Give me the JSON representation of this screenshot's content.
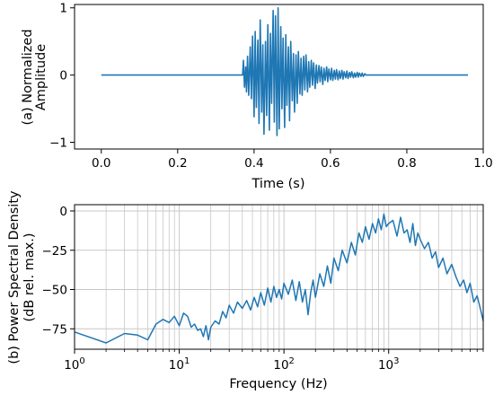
{
  "chart_data": [
    {
      "type": "line",
      "panel": "(a)",
      "xlabel": "Time (s)",
      "ylabel_lines": [
        "(a) Normalized",
        "Amplitude"
      ],
      "xlim": [
        -0.07,
        1.0
      ],
      "ylim": [
        -1.1,
        1.05
      ],
      "xticks": [
        0.0,
        0.2,
        0.4,
        0.6,
        0.8,
        1.0
      ],
      "xtick_labels": [
        "0.0",
        "0.2",
        "0.4",
        "0.6",
        "0.8",
        "1.0"
      ],
      "yticks": [
        -1,
        0,
        1
      ],
      "ytick_labels": [
        "−1",
        "0",
        "1"
      ],
      "grid": false,
      "line_color": "#1f77b4",
      "series": [
        {
          "x": [
            0.0,
            0.37,
            0.372,
            0.375,
            0.378,
            0.38,
            0.383,
            0.386,
            0.39,
            0.393,
            0.396,
            0.4,
            0.403,
            0.406,
            0.41,
            0.413,
            0.416,
            0.42,
            0.423,
            0.426,
            0.43,
            0.433,
            0.436,
            0.44,
            0.443,
            0.446,
            0.45,
            0.453,
            0.456,
            0.46,
            0.463,
            0.466,
            0.47,
            0.473,
            0.476,
            0.48,
            0.483,
            0.486,
            0.49,
            0.493,
            0.496,
            0.5,
            0.503,
            0.506,
            0.51,
            0.513,
            0.516,
            0.52,
            0.523,
            0.526,
            0.53,
            0.533,
            0.536,
            0.54,
            0.543,
            0.546,
            0.55,
            0.553,
            0.556,
            0.56,
            0.563,
            0.566,
            0.57,
            0.573,
            0.576,
            0.58,
            0.583,
            0.586,
            0.59,
            0.593,
            0.596,
            0.6,
            0.603,
            0.606,
            0.61,
            0.613,
            0.616,
            0.62,
            0.623,
            0.626,
            0.63,
            0.633,
            0.636,
            0.64,
            0.643,
            0.646,
            0.65,
            0.653,
            0.656,
            0.66,
            0.663,
            0.666,
            0.67,
            0.673,
            0.676,
            0.68,
            0.683,
            0.686,
            0.69,
            0.693,
            0.96
          ],
          "y": [
            0.0,
            0.0,
            0.22,
            -0.18,
            0.12,
            -0.25,
            0.28,
            -0.3,
            0.42,
            -0.35,
            0.58,
            -0.62,
            0.65,
            -0.48,
            0.52,
            -0.72,
            0.82,
            -0.55,
            0.45,
            -0.88,
            0.5,
            -0.6,
            0.75,
            -0.82,
            0.62,
            -0.42,
            0.96,
            -0.7,
            0.88,
            -0.9,
            1.0,
            -0.8,
            0.72,
            -0.5,
            0.55,
            -0.78,
            0.6,
            -0.45,
            0.42,
            -0.68,
            0.5,
            -0.38,
            0.32,
            -0.55,
            0.3,
            -0.42,
            0.35,
            -0.28,
            0.25,
            -0.3,
            0.28,
            -0.22,
            0.3,
            -0.25,
            0.2,
            -0.18,
            0.22,
            -0.15,
            0.18,
            -0.2,
            0.15,
            -0.12,
            0.14,
            -0.1,
            0.12,
            -0.14,
            0.1,
            -0.08,
            0.12,
            -0.1,
            0.09,
            -0.07,
            0.1,
            -0.08,
            0.07,
            -0.06,
            0.08,
            -0.07,
            0.06,
            -0.05,
            0.07,
            -0.06,
            0.05,
            -0.04,
            0.06,
            -0.05,
            0.04,
            -0.03,
            0.05,
            -0.04,
            0.03,
            -0.03,
            0.04,
            -0.03,
            0.03,
            -0.02,
            0.03,
            -0.02,
            0.02,
            0.0,
            0.0
          ]
        }
      ]
    },
    {
      "type": "line",
      "panel": "(b)",
      "xlabel": "Frequency (Hz)",
      "ylabel_lines": [
        "(b) Power Spectral Density",
        "(dB rel. max.)"
      ],
      "xscale": "log",
      "xlim": [
        1,
        8000
      ],
      "ylim": [
        -88,
        4
      ],
      "xticks": [
        1,
        10,
        100,
        1000
      ],
      "xtick_labels": [
        [
          "10",
          "0"
        ],
        [
          "10",
          "1"
        ],
        [
          "10",
          "2"
        ],
        [
          "10",
          "3"
        ]
      ],
      "yticks": [
        0,
        -25,
        -50,
        -75
      ],
      "ytick_labels": [
        "0",
        "−25",
        "−50",
        "−75"
      ],
      "grid": true,
      "line_color": "#1f77b4",
      "series": [
        {
          "x": [
            1,
            2,
            3,
            4,
            5,
            6,
            7,
            8,
            9,
            10,
            11,
            12,
            13,
            14,
            15,
            16,
            17,
            18,
            19,
            20,
            22,
            24,
            26,
            28,
            30,
            33,
            36,
            40,
            44,
            48,
            52,
            56,
            60,
            65,
            70,
            75,
            80,
            85,
            90,
            95,
            100,
            110,
            120,
            130,
            140,
            150,
            160,
            170,
            180,
            190,
            200,
            220,
            240,
            260,
            280,
            300,
            330,
            360,
            400,
            440,
            480,
            520,
            560,
            600,
            650,
            700,
            750,
            800,
            850,
            900,
            950,
            1000,
            1100,
            1200,
            1300,
            1400,
            1500,
            1600,
            1700,
            1800,
            1900,
            2000,
            2200,
            2400,
            2600,
            2800,
            3000,
            3300,
            3600,
            4000,
            4400,
            4800,
            5200,
            5600,
            6000,
            6500,
            7000,
            7500,
            8000
          ],
          "y": [
            -77,
            -84,
            -78,
            -79,
            -82,
            -72,
            -69,
            -71,
            -67,
            -73,
            -65,
            -67,
            -74,
            -72,
            -76,
            -75,
            -80,
            -73,
            -82,
            -74,
            -70,
            -72,
            -64,
            -68,
            -60,
            -65,
            -58,
            -62,
            -57,
            -63,
            -55,
            -61,
            -52,
            -60,
            -49,
            -58,
            -48,
            -55,
            -50,
            -56,
            -46,
            -53,
            -44,
            -57,
            -45,
            -58,
            -50,
            -66,
            -52,
            -44,
            -55,
            -40,
            -48,
            -35,
            -46,
            -30,
            -38,
            -25,
            -33,
            -20,
            -28,
            -14,
            -20,
            -10,
            -18,
            -8,
            -14,
            -5,
            -12,
            -2,
            -10,
            -8,
            -6,
            -16,
            -4,
            -14,
            -12,
            -20,
            -8,
            -22,
            -14,
            -18,
            -24,
            -20,
            -30,
            -26,
            -36,
            -30,
            -40,
            -34,
            -42,
            -48,
            -44,
            -52,
            -46,
            -58,
            -54,
            -62,
            -70
          ]
        }
      ]
    }
  ]
}
